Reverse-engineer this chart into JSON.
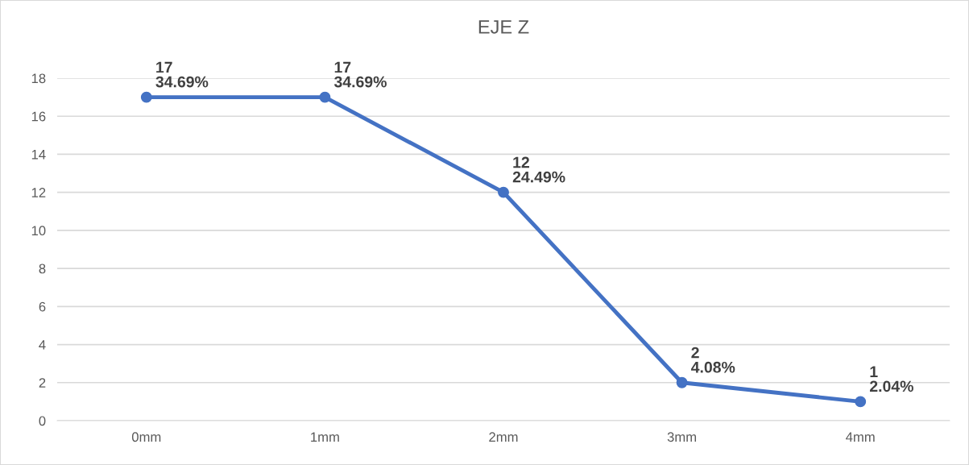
{
  "chart_data": {
    "type": "line",
    "title": "EJE Z",
    "categories": [
      "0mm",
      "1mm",
      "2mm",
      "3mm",
      "4mm"
    ],
    "series": [
      {
        "color": "#4472c4",
        "values": [
          17,
          17,
          12,
          2,
          1
        ],
        "value_labels": [
          "17\n34.69%",
          "17\n34.69%",
          "12\n24.49%",
          "2\n4.08%",
          "1\n2.04%"
        ]
      }
    ],
    "ylim": [
      0,
      18
    ],
    "yticks": [
      0,
      2,
      4,
      6,
      8,
      10,
      12,
      14,
      16,
      18
    ],
    "grid": "y",
    "marker": "circle",
    "line_style": "solid",
    "legend": false
  }
}
